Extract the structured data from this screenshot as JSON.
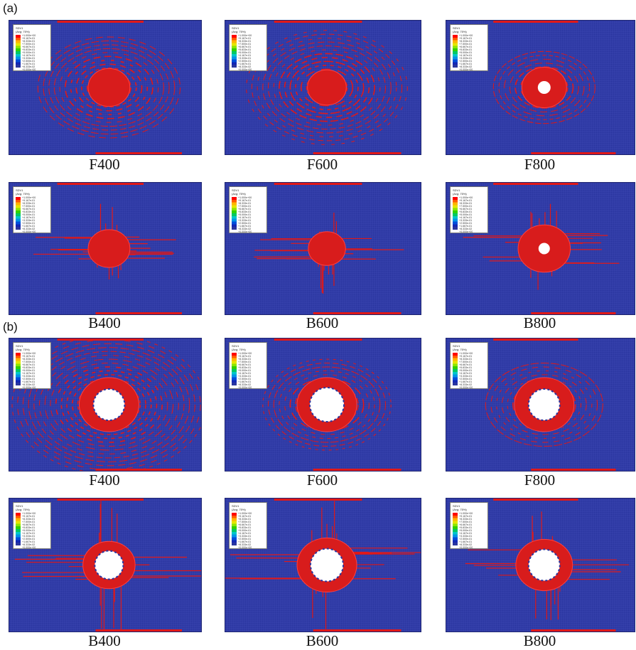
{
  "labels": {
    "a": "(a)",
    "b": "(b)"
  },
  "legend": {
    "header_line1": "SDV1",
    "header_line2": "(Avg: 75%)",
    "values": [
      "+1.000e+00",
      "+9.167e-01",
      "+8.333e-01",
      "+7.500e-01",
      "+6.667e-01",
      "+5.833e-01",
      "+5.000e-01",
      "+4.167e-01",
      "+3.333e-01",
      "+2.500e-01",
      "+1.667e-01",
      "+8.333e-02",
      "+0.000e+00"
    ],
    "colors": [
      "#ff0000",
      "#ff5a00",
      "#ffb400",
      "#e6e600",
      "#8ce600",
      "#32d200",
      "#00c864",
      "#00c8c8",
      "#0096e6",
      "#0050dc",
      "#1428b4",
      "#2a36a0"
    ]
  },
  "panels": [
    {
      "id": "a-F400",
      "caption": "F400",
      "damage": "red mesh damage, large spread, no perforation"
    },
    {
      "id": "a-F600",
      "caption": "F600",
      "damage": "red mesh damage, large spread, no perforation"
    },
    {
      "id": "a-F800",
      "caption": "F800",
      "damage": "red mesh damage with small central hole"
    },
    {
      "id": "a-B400",
      "caption": "B400",
      "damage": "cross-shaped damage, no perforation"
    },
    {
      "id": "a-B600",
      "caption": "B600",
      "damage": "cross-shaped damage, no perforation"
    },
    {
      "id": "a-B800",
      "caption": "B800",
      "damage": "damage with small central hole"
    },
    {
      "id": "b-F400",
      "caption": "F400",
      "damage": "perforated, wide ring damage"
    },
    {
      "id": "b-F600",
      "caption": "F600",
      "damage": "perforated, ring damage"
    },
    {
      "id": "b-F800",
      "caption": "F800",
      "damage": "perforated, ring damage"
    },
    {
      "id": "b-B400",
      "caption": "B400",
      "damage": "perforated, cross damage"
    },
    {
      "id": "b-B600",
      "caption": "B600",
      "damage": "perforated, cross damage"
    },
    {
      "id": "b-B800",
      "caption": "B800",
      "damage": "perforated, cross damage"
    }
  ]
}
